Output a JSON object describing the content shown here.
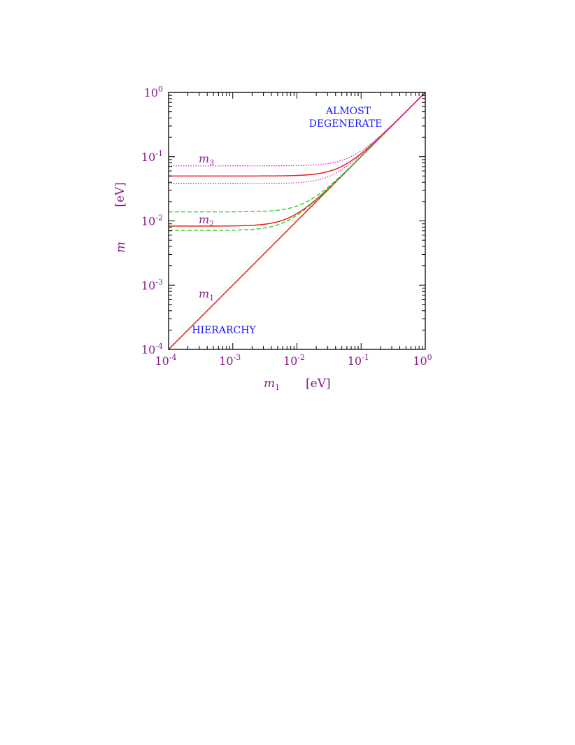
{
  "chart_data": {
    "type": "line",
    "x_scale": "log",
    "y_scale": "log",
    "xlim": [
      0.0001,
      1
    ],
    "ylim": [
      0.0001,
      1
    ],
    "x_ticks": [
      {
        "base": "10",
        "exp": "-4",
        "value": 0.0001
      },
      {
        "base": "10",
        "exp": "-3",
        "value": 0.001
      },
      {
        "base": "10",
        "exp": "-2",
        "value": 0.01
      },
      {
        "base": "10",
        "exp": "-1",
        "value": 0.1
      },
      {
        "base": "10",
        "exp": "0",
        "value": 1
      }
    ],
    "y_ticks": [
      {
        "base": "10",
        "exp": "-4",
        "value": 0.0001
      },
      {
        "base": "10",
        "exp": "-3",
        "value": 0.001
      },
      {
        "base": "10",
        "exp": "-2",
        "value": 0.01
      },
      {
        "base": "10",
        "exp": "-1",
        "value": 0.1
      },
      {
        "base": "10",
        "exp": "0",
        "value": 1
      }
    ],
    "xlabel": {
      "symbol": "m",
      "sub": "1",
      "unit": "[eV]"
    },
    "ylabel": {
      "symbol": "m",
      "unit": "[eV]"
    },
    "grid": false,
    "annotations": [
      {
        "id": "almost",
        "text": "ALMOST"
      },
      {
        "id": "degenerate",
        "text": "DEGENERATE"
      },
      {
        "id": "hierarchy",
        "text": "HIERARCHY"
      }
    ],
    "curve_labels": [
      {
        "id": "m3",
        "symbol": "m",
        "sub": "3"
      },
      {
        "id": "m2",
        "symbol": "m",
        "sub": "2"
      },
      {
        "id": "m1",
        "symbol": "m",
        "sub": "1"
      }
    ],
    "series": [
      {
        "id": "m1_line",
        "style": "solid",
        "color": "#e8201a",
        "formula": "m1",
        "value": 0
      },
      {
        "id": "m2_central",
        "style": "solid",
        "color": "#e8201a",
        "formula": "sqrt",
        "value": 0.0083
      },
      {
        "id": "m2_upper",
        "style": "dashed",
        "color": "#22cc22",
        "formula": "sqrt",
        "value": 0.0138
      },
      {
        "id": "m2_lower",
        "style": "dashed",
        "color": "#22cc22",
        "formula": "sqrt",
        "value": 0.0071
      },
      {
        "id": "m3_central",
        "style": "solid",
        "color": "#e8201a",
        "formula": "sqrt",
        "value": 0.05
      },
      {
        "id": "m3_upper",
        "style": "dotted",
        "color": "#dd22dd",
        "formula": "sqrt",
        "value": 0.072
      },
      {
        "id": "m3_lower",
        "style": "dotted",
        "color": "#dd22dd",
        "formula": "sqrt",
        "value": 0.038
      }
    ]
  }
}
